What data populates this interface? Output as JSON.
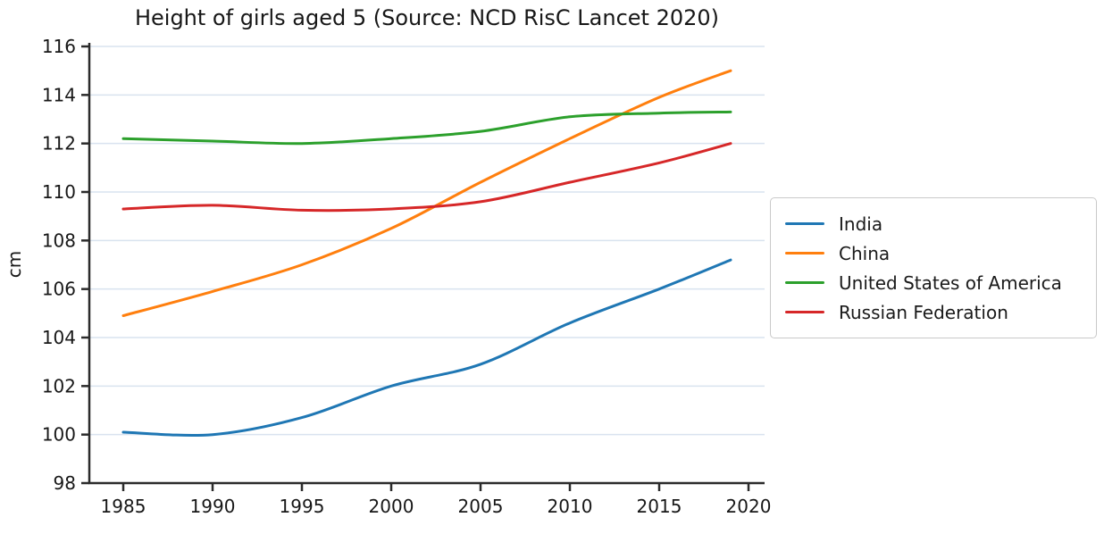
{
  "title": "Height of girls aged 5 (Source: NCD RisC Lancet 2020)",
  "chart_data": {
    "type": "line",
    "title": "Height of girls aged 5 (Source: NCD RisC Lancet 2020)",
    "xlabel": "",
    "ylabel": "cm",
    "x": [
      1985,
      1990,
      1995,
      2000,
      2005,
      2010,
      2015,
      2019
    ],
    "series": [
      {
        "name": "India",
        "color": "#1f77b4",
        "values": [
          100.1,
          100.0,
          100.7,
          102.0,
          102.9,
          104.6,
          106.0,
          107.2
        ]
      },
      {
        "name": "China",
        "color": "#ff7f0e",
        "values": [
          104.9,
          105.9,
          107.0,
          108.5,
          110.4,
          112.2,
          113.9,
          115.0
        ]
      },
      {
        "name": "United States of America",
        "color": "#2ca02c",
        "values": [
          112.2,
          112.1,
          112.0,
          112.2,
          112.5,
          113.1,
          113.25,
          113.3
        ]
      },
      {
        "name": "Russian Federation",
        "color": "#d62728",
        "values": [
          109.3,
          109.45,
          109.25,
          109.3,
          109.6,
          110.4,
          111.2,
          112.0
        ]
      }
    ],
    "xlim": [
      1983.1,
      2020.9
    ],
    "ylim": [
      98,
      116
    ],
    "xticks": [
      1985,
      1990,
      1995,
      2000,
      2005,
      2010,
      2015,
      2020
    ],
    "yticks": [
      98,
      100,
      102,
      104,
      106,
      108,
      110,
      112,
      114,
      116
    ],
    "grid": "horizontal",
    "legend_position": "center right, outside plot"
  },
  "colors": {
    "grid": "#d9e3ef",
    "axis": "#2b2b2b",
    "tick_text": "#171717",
    "legend_border": "#c9c9c9",
    "background": "#ffffff"
  }
}
